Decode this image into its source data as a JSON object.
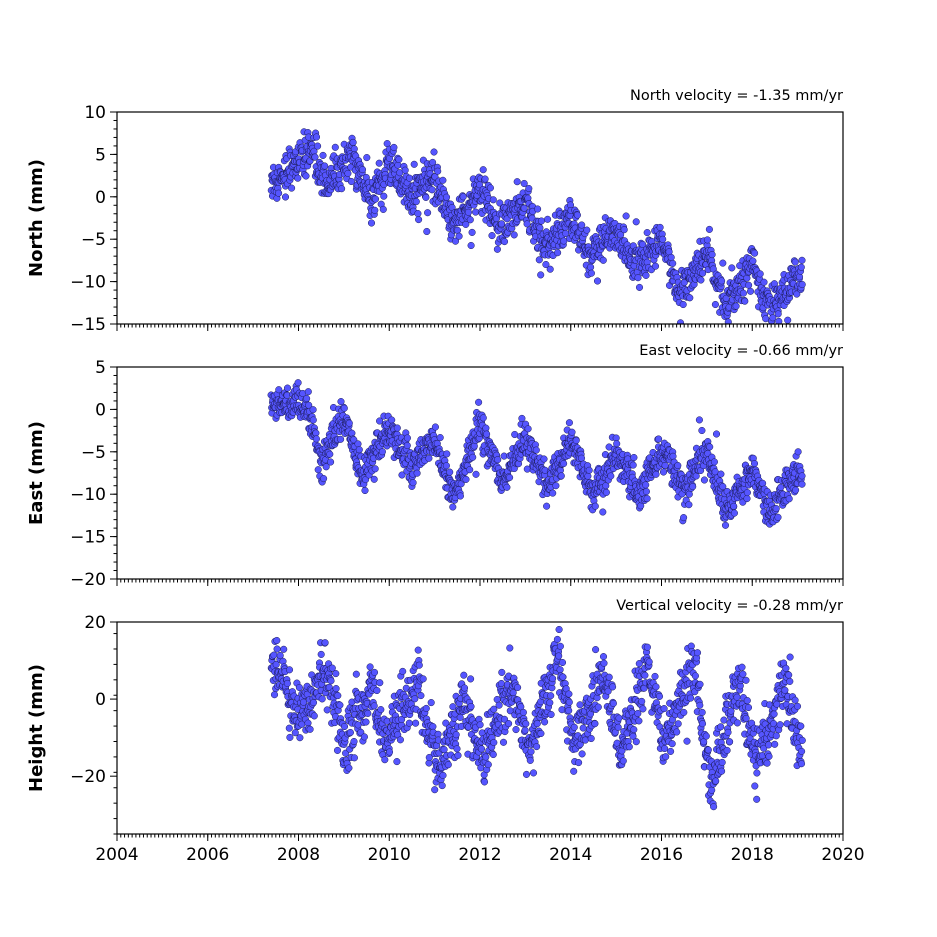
{
  "chart_data": [
    {
      "type": "scatter",
      "annotation": "North velocity = -1.35 mm/yr",
      "ylabel": "North (mm)",
      "xlim": [
        2004,
        2020
      ],
      "ylim": [
        -15,
        10
      ],
      "y_ticks": [
        10,
        5,
        0,
        -5,
        -10,
        -15
      ],
      "y_tick_labels": [
        "10",
        "5",
        "0",
        "−5",
        "−10",
        "−15"
      ],
      "x_ticks": [
        2004,
        2006,
        2008,
        2010,
        2012,
        2014,
        2016,
        2018,
        2020
      ],
      "x_tick_labels": [],
      "series": [
        {
          "color": "#5555ff",
          "x_range": [
            2007.4,
            2019.1
          ],
          "trend_per_year": -1.35,
          "points": [
            [
              2007.5,
              2.0
            ],
            [
              2007.9,
              4.0
            ],
            [
              2008.3,
              5.5
            ],
            [
              2008.6,
              1.5
            ],
            [
              2009.2,
              4.8
            ],
            [
              2009.6,
              -0.5
            ],
            [
              2010.0,
              4.0
            ],
            [
              2010.5,
              0.0
            ],
            [
              2011.0,
              2.5
            ],
            [
              2011.4,
              -3.5
            ],
            [
              2012.0,
              1.0
            ],
            [
              2012.4,
              -4.0
            ],
            [
              2013.0,
              -0.5
            ],
            [
              2013.4,
              -6.0
            ],
            [
              2014.0,
              -2.5
            ],
            [
              2014.4,
              -7.0
            ],
            [
              2015.0,
              -4.0
            ],
            [
              2015.4,
              -8.5
            ],
            [
              2016.0,
              -5.5
            ],
            [
              2016.4,
              -11.0
            ],
            [
              2017.0,
              -7.0
            ],
            [
              2017.4,
              -12.5
            ],
            [
              2018.0,
              -8.0
            ],
            [
              2018.4,
              -13.0
            ],
            [
              2019.0,
              -9.5
            ]
          ]
        }
      ],
      "grid": false
    },
    {
      "type": "scatter",
      "annotation": "East velocity = -0.66 mm/yr",
      "ylabel": "East (mm)",
      "xlim": [
        2004,
        2020
      ],
      "ylim": [
        -20,
        5
      ],
      "y_ticks": [
        5,
        0,
        -5,
        -10,
        -15,
        -20
      ],
      "y_tick_labels": [
        "5",
        "0",
        "−5",
        "−10",
        "−15",
        "−20"
      ],
      "x_ticks": [
        2004,
        2006,
        2008,
        2010,
        2012,
        2014,
        2016,
        2018,
        2020
      ],
      "x_tick_labels": [],
      "series": [
        {
          "color": "#5555ff",
          "x_range": [
            2007.4,
            2019.1
          ],
          "trend_per_year": -0.66,
          "points": [
            [
              2007.5,
              1.0
            ],
            [
              2007.9,
              0.5
            ],
            [
              2008.3,
              -1.0
            ],
            [
              2008.5,
              -6.5
            ],
            [
              2009.0,
              -0.5
            ],
            [
              2009.4,
              -8.0
            ],
            [
              2010.0,
              -2.0
            ],
            [
              2010.5,
              -7.0
            ],
            [
              2011.0,
              -3.0
            ],
            [
              2011.4,
              -10.5
            ],
            [
              2012.0,
              -2.0
            ],
            [
              2012.5,
              -8.5
            ],
            [
              2013.0,
              -3.5
            ],
            [
              2013.5,
              -9.0
            ],
            [
              2014.0,
              -3.5
            ],
            [
              2014.5,
              -10.0
            ],
            [
              2015.0,
              -5.0
            ],
            [
              2015.5,
              -10.5
            ],
            [
              2016.0,
              -4.5
            ],
            [
              2016.5,
              -9.5
            ],
            [
              2017.0,
              -5.0
            ],
            [
              2017.4,
              -12.0
            ],
            [
              2018.0,
              -7.0
            ],
            [
              2018.4,
              -12.0
            ],
            [
              2019.0,
              -7.5
            ]
          ]
        }
      ],
      "grid": false
    },
    {
      "type": "scatter",
      "annotation": "Vertical velocity = -0.28 mm/yr",
      "ylabel": "Height (mm)",
      "xlim": [
        2004,
        2020
      ],
      "ylim": [
        -35,
        20
      ],
      "y_ticks": [
        20,
        0,
        -20
      ],
      "y_tick_labels": [
        "20",
        "0",
        "−20"
      ],
      "x_ticks": [
        2004,
        2006,
        2008,
        2010,
        2012,
        2014,
        2016,
        2018,
        2020
      ],
      "x_tick_labels": [
        "2004",
        "2006",
        "2008",
        "2010",
        "2012",
        "2014",
        "2016",
        "2018",
        "2020"
      ],
      "series": [
        {
          "color": "#5555ff",
          "x_range": [
            2007.4,
            2019.1
          ],
          "trend_per_year": -0.28,
          "points": [
            [
              2007.6,
              8.0
            ],
            [
              2008.0,
              -5.0
            ],
            [
              2008.6,
              8.0
            ],
            [
              2009.0,
              -12.0
            ],
            [
              2009.6,
              2.0
            ],
            [
              2010.0,
              -12.0
            ],
            [
              2010.6,
              6.0
            ],
            [
              2011.1,
              -20.0
            ],
            [
              2011.6,
              0.0
            ],
            [
              2012.1,
              -15.0
            ],
            [
              2012.7,
              5.0
            ],
            [
              2013.1,
              -14.0
            ],
            [
              2013.7,
              12.0
            ],
            [
              2014.1,
              -12.0
            ],
            [
              2014.7,
              7.0
            ],
            [
              2015.1,
              -14.0
            ],
            [
              2015.7,
              9.0
            ],
            [
              2016.1,
              -12.0
            ],
            [
              2016.7,
              10.0
            ],
            [
              2017.1,
              -22.0
            ],
            [
              2017.7,
              5.0
            ],
            [
              2018.1,
              -18.0
            ],
            [
              2018.7,
              5.0
            ],
            [
              2019.0,
              -10.0
            ]
          ]
        }
      ],
      "grid": false
    }
  ]
}
